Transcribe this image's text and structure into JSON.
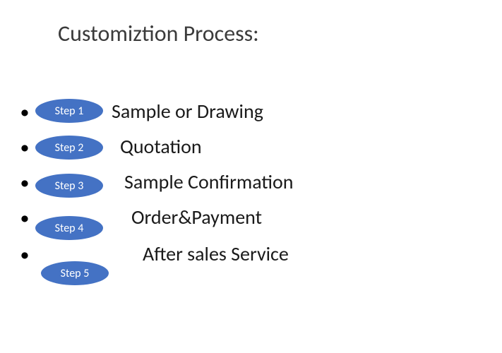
{
  "title": "Customiztion Process:",
  "pill_bg": "#4472c4",
  "pill_text_color": "#ffffff",
  "text_color": "#1a1a1a",
  "steps": [
    {
      "label": "Step 1",
      "desc": "Sample or Drawing"
    },
    {
      "label": "Step 2",
      "desc": "Quotation"
    },
    {
      "label": "Step 3",
      "desc": "Sample Confirmation"
    },
    {
      "label": "Step 4",
      "desc": "Order&Payment"
    },
    {
      "label": "Step 5",
      "desc": "After sales Service"
    }
  ]
}
